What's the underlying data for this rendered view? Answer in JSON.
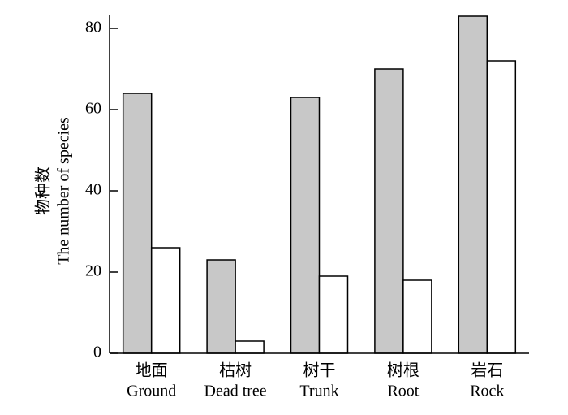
{
  "chart_data": {
    "type": "bar",
    "ylabel": "物种数",
    "ylabel_en": "The number of species",
    "categories_cn": [
      "地面",
      "枯树",
      "树干",
      "树根",
      "岩石"
    ],
    "categories": [
      "Ground",
      "Dead tree",
      "Trunk",
      "Root",
      "Rock"
    ],
    "series": [
      {
        "color": "#c8c8c8",
        "values": [
          64,
          23,
          63,
          70,
          83
        ]
      },
      {
        "color": "#ffffff",
        "values": [
          26,
          3,
          19,
          18,
          72
        ]
      }
    ],
    "ylim": [
      0,
      83.4
    ],
    "yticks": [
      0,
      20,
      40,
      60,
      80
    ]
  }
}
